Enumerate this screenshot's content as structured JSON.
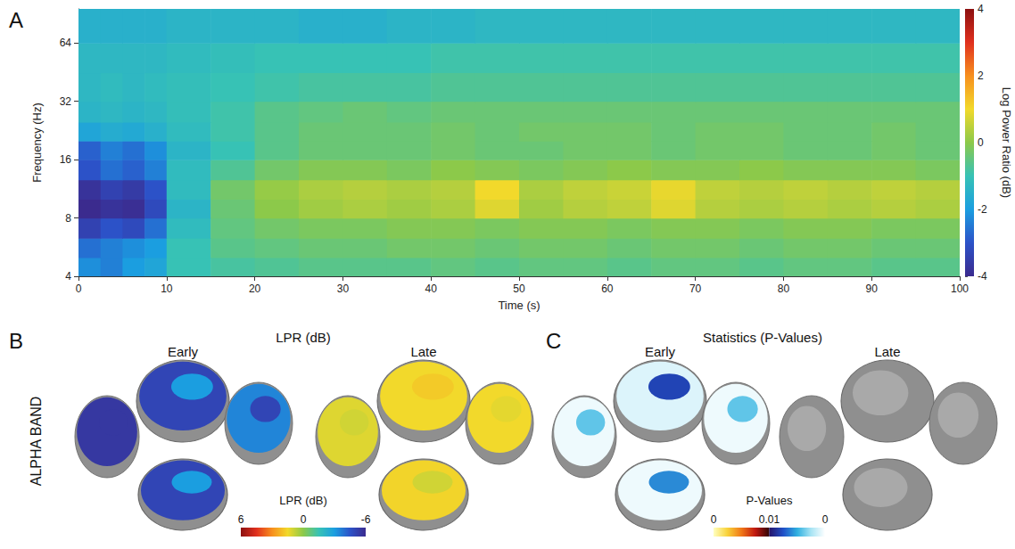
{
  "chart_data": {
    "type": "heatmap",
    "panel": "A",
    "x_label": "Time (s)",
    "y_label": "Frequency (Hz)",
    "xlim": [
      0,
      100
    ],
    "xticks": [
      0,
      10,
      20,
      30,
      40,
      50,
      60,
      70,
      80,
      90,
      100
    ],
    "ylim": [
      4,
      96
    ],
    "yticks": [
      4,
      8,
      16,
      32,
      64
    ],
    "log": "y",
    "grid": false,
    "time_edges": [
      0,
      2.5,
      5,
      7.5,
      10,
      15,
      20,
      25,
      30,
      35,
      40,
      45,
      50,
      55,
      60,
      65,
      70,
      75,
      80,
      85,
      90,
      95,
      100
    ],
    "frequency_edges": [
      4,
      5,
      6.3,
      8,
      10,
      12.6,
      16,
      20,
      25,
      32,
      45,
      64,
      96
    ],
    "cells": [
      [
        -2.2,
        -2.4,
        -2,
        -1.8,
        -1,
        -0.8,
        -0.7,
        -0.6,
        -0.6,
        -0.6,
        -0.5,
        -0.6,
        -0.5,
        -0.5,
        -0.6,
        -0.5,
        -0.5,
        -0.6,
        -0.5,
        -0.5,
        -0.6,
        -0.6
      ],
      [
        -2.6,
        -2.4,
        -2.2,
        -2,
        -1,
        -0.6,
        -0.5,
        -0.4,
        -0.4,
        -0.3,
        -0.3,
        -0.4,
        -0.3,
        -0.3,
        -0.4,
        -0.3,
        -0.3,
        -0.4,
        -0.3,
        -0.3,
        -0.4,
        -0.4
      ],
      [
        -3.4,
        -3,
        -3.2,
        -2.6,
        -1.2,
        -0.5,
        -0.3,
        -0.2,
        -0.2,
        -0.1,
        -0.1,
        -0.2,
        -0.1,
        -0.1,
        -0.2,
        -0.1,
        -0.1,
        -0.2,
        -0.1,
        -0.1,
        -0.2,
        -0.2
      ],
      [
        -4,
        -3.8,
        -3.9,
        -3.2,
        -1.4,
        -0.4,
        0,
        0.2,
        0.3,
        0.2,
        0.3,
        0.8,
        0.2,
        0.4,
        0.5,
        0.8,
        0.4,
        0.3,
        0.4,
        0.3,
        0.4,
        0.3
      ],
      [
        -3.8,
        -3.4,
        -3.6,
        -3,
        -1.2,
        -0.3,
        0.1,
        0.3,
        0.4,
        0.3,
        0.4,
        1,
        0.3,
        0.5,
        0.6,
        0.9,
        0.5,
        0.4,
        0.5,
        0.4,
        0.5,
        0.4
      ],
      [
        -3,
        -2.6,
        -2.8,
        -2.4,
        -1.2,
        -0.7,
        -0.3,
        -0.1,
        -0.1,
        -0.2,
        0,
        -0.1,
        -0.2,
        -0.1,
        0,
        -0.1,
        -0.1,
        0,
        -0.1,
        -0.1,
        -0.1,
        -0.2
      ],
      [
        -2.8,
        -2.4,
        -2.6,
        -2.2,
        -1.4,
        -1,
        -0.6,
        -0.4,
        -0.4,
        -0.4,
        -0.3,
        -0.4,
        -0.4,
        -0.3,
        -0.3,
        -0.4,
        -0.3,
        -0.3,
        -0.4,
        -0.4,
        -0.3,
        -0.4
      ],
      [
        -1.8,
        -1.6,
        -1.7,
        -1.5,
        -1.2,
        -0.9,
        -0.6,
        -0.4,
        -0.4,
        -0.4,
        -0.3,
        -0.4,
        -0.3,
        -0.3,
        -0.3,
        -0.4,
        -0.3,
        -0.3,
        -0.4,
        -0.4,
        -0.3,
        -0.4
      ],
      [
        -1.4,
        -1.3,
        -1.4,
        -1.3,
        -1.1,
        -0.9,
        -0.6,
        -0.5,
        -0.4,
        -0.5,
        -0.4,
        -0.4,
        -0.4,
        -0.4,
        -0.4,
        -0.4,
        -0.4,
        -0.4,
        -0.4,
        -0.4,
        -0.4,
        -0.4
      ],
      [
        -1.3,
        -1.2,
        -1.3,
        -1.2,
        -1.1,
        -1,
        -0.9,
        -0.8,
        -0.8,
        -0.8,
        -0.7,
        -0.7,
        -0.7,
        -0.7,
        -0.7,
        -0.7,
        -0.7,
        -0.7,
        -0.7,
        -0.7,
        -0.7,
        -0.7
      ],
      [
        -1.3,
        -1.3,
        -1.3,
        -1.3,
        -1.2,
        -1.1,
        -1,
        -1,
        -1,
        -1,
        -0.9,
        -0.9,
        -0.9,
        -0.9,
        -0.9,
        -0.9,
        -0.9,
        -0.9,
        -0.9,
        -0.9,
        -0.9,
        -0.9
      ],
      [
        -1.5,
        -1.5,
        -1.5,
        -1.5,
        -1.4,
        -1.4,
        -1.4,
        -1.5,
        -1.5,
        -1.4,
        -1.4,
        -1.3,
        -1.3,
        -1.3,
        -1.3,
        -1.3,
        -1.3,
        -1.3,
        -1.3,
        -1.3,
        -1.3,
        -1.3
      ]
    ],
    "colorbar_label": "Log Power Ratio (dB)",
    "colorbar_range": [
      -4,
      4
    ],
    "colorbar_ticks": [
      -4,
      -2,
      0,
      2,
      4
    ]
  },
  "topographies": {
    "band_label": "ALPHA BAND",
    "lpr": {
      "panel": "B",
      "title": "LPR (dB)",
      "early_label": "Early",
      "late_label": "Late",
      "early": [
        [
          -5.5,
          -5.5
        ],
        [
          -5,
          -3
        ],
        [
          -3.5,
          -5
        ],
        [
          -5,
          -3
        ]
      ],
      "late": [
        [
          1.2,
          1
        ],
        [
          1.5,
          1.8
        ],
        [
          1.5,
          1.3
        ],
        [
          1.6,
          1
        ]
      ],
      "colorbar_label": "LPR (dB)",
      "colorbar_range": [
        6,
        -6
      ],
      "colorbar_ticks": [
        6,
        0,
        -6
      ]
    },
    "statistics": {
      "panel": "C",
      "title": "Statistics (P-Values)",
      "early_label": "Early",
      "late_label": "Late",
      "early": [
        [
          0.0005,
          0.004
        ],
        [
          0.001,
          0.008
        ],
        [
          0.0005,
          0.004
        ],
        [
          0.0005,
          0.006
        ]
      ],
      "late": [
        null,
        null,
        null,
        null
      ],
      "colorbar_label": "P-Values",
      "colorbar_ticks": [
        0,
        0.01,
        0
      ]
    }
  }
}
